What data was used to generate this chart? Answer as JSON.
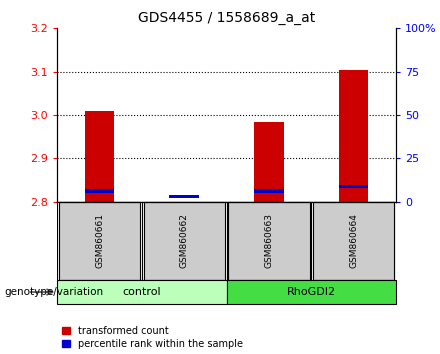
{
  "title": "GDS4455 / 1558689_a_at",
  "samples": [
    "GSM860661",
    "GSM860662",
    "GSM860663",
    "GSM860664"
  ],
  "red_values": [
    3.01,
    2.8,
    2.985,
    3.105
  ],
  "blue_values": [
    2.825,
    2.812,
    2.825,
    2.835
  ],
  "ylim": [
    2.8,
    3.2
  ],
  "yticks_left": [
    2.8,
    2.9,
    3.0,
    3.1,
    3.2
  ],
  "yticks_right": [
    0,
    25,
    50,
    75,
    100
  ],
  "bar_width": 0.35,
  "red_color": "#cc0000",
  "blue_color": "#0000cc",
  "group_colors": {
    "control": "#bbffbb",
    "RhoGDI2": "#44dd44"
  },
  "sample_box_color": "#cccccc",
  "xlabel_genotype": "genotype/variation",
  "legend_red": "transformed count",
  "legend_blue": "percentile rank within the sample",
  "title_fontsize": 10,
  "tick_fontsize": 8,
  "group_spans": [
    {
      "name": "control",
      "start": 0,
      "end": 1
    },
    {
      "name": "RhoGDI2",
      "start": 2,
      "end": 3
    }
  ],
  "gridline_y": [
    2.9,
    3.0,
    3.1
  ]
}
